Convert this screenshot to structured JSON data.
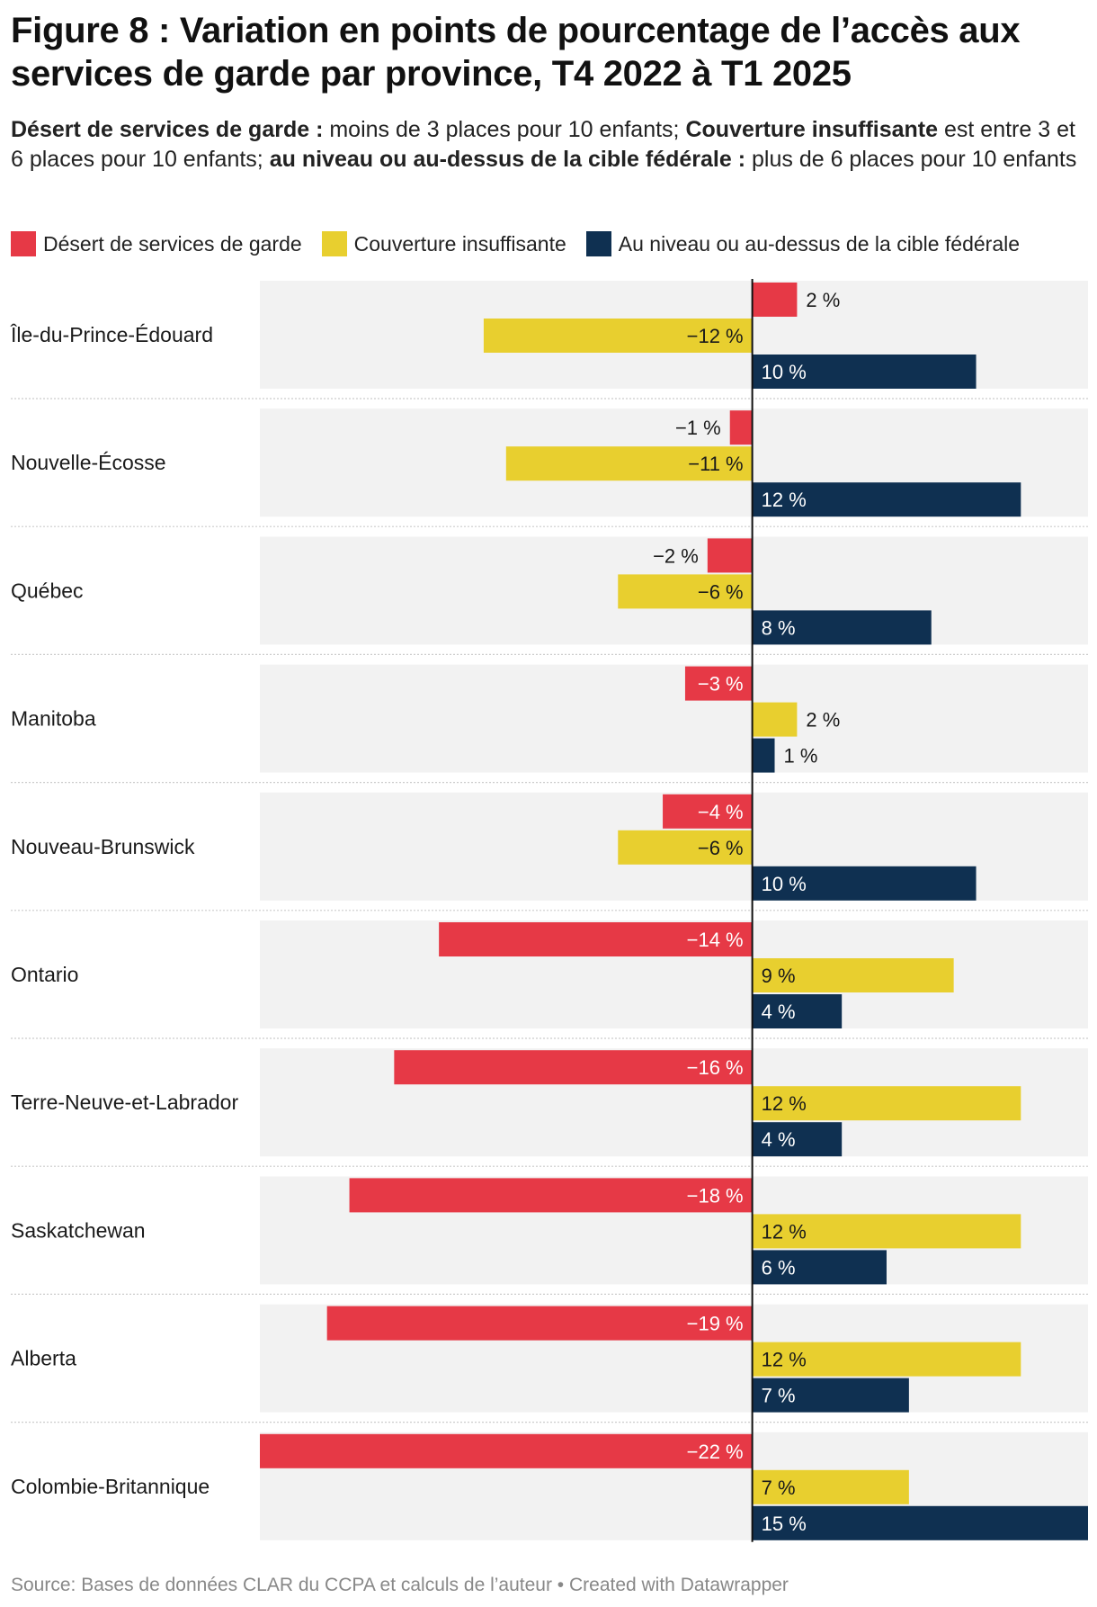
{
  "title": "Figure 8 : Variation en points de pourcentage de l’accès aux services de garde par province, T4 2022 à T1 2025",
  "description": [
    {
      "text": "Désert de services de garde :",
      "bold": true
    },
    {
      "text": " moins de 3 places pour 10 enfants; ",
      "bold": false
    },
    {
      "text": "Couverture insuffisante",
      "bold": true
    },
    {
      "text": " est entre 3 et 6 places pour 10 enfants; ",
      "bold": false
    },
    {
      "text": "au niveau ou au-dessus de la cible fédérale :",
      "bold": true
    },
    {
      "text": " plus de 6 places pour 10 enfants",
      "bold": false
    }
  ],
  "source": "Source: Bases de données CLAR du CCPA et calculs de l’auteur • Created with Datawrapper",
  "chart_data": {
    "type": "bar",
    "orientation": "horizontal-grouped",
    "title": "Figure 8 : Variation en points de pourcentage de l’accès aux services de garde par province, T4 2022 à T1 2025",
    "xlim": [
      -22,
      15
    ],
    "grid": false,
    "legend_placement": "top",
    "value_suffix": " %",
    "categories": [
      "Île-du-Prince-Édouard",
      "Nouvelle-Écosse",
      "Québec",
      "Manitoba",
      "Nouveau-Brunswick",
      "Ontario",
      "Terre-Neuve-et-Labrador",
      "Saskatchewan",
      "Alberta",
      "Colombie-Britannique"
    ],
    "series": [
      {
        "name": "Désert de services de garde",
        "color": "#e63946",
        "values": [
          2,
          -1,
          -2,
          -3,
          -4,
          -14,
          -16,
          -18,
          -19,
          -22
        ]
      },
      {
        "name": "Couverture insuffisante",
        "color": "#e8cf2f",
        "values": [
          -12,
          -11,
          -6,
          2,
          -6,
          9,
          12,
          12,
          12,
          7
        ]
      },
      {
        "name": "Au niveau ou au-dessus de la cible fédérale",
        "color": "#0f3051",
        "values": [
          10,
          12,
          8,
          1,
          10,
          4,
          4,
          6,
          7,
          15
        ]
      }
    ]
  },
  "colors": {
    "panel_background": "#f2f2f2",
    "zero_line": "#111111",
    "separator": "#cccccc",
    "label_dark": "#1a1a1a",
    "label_light": "#ffffff"
  }
}
